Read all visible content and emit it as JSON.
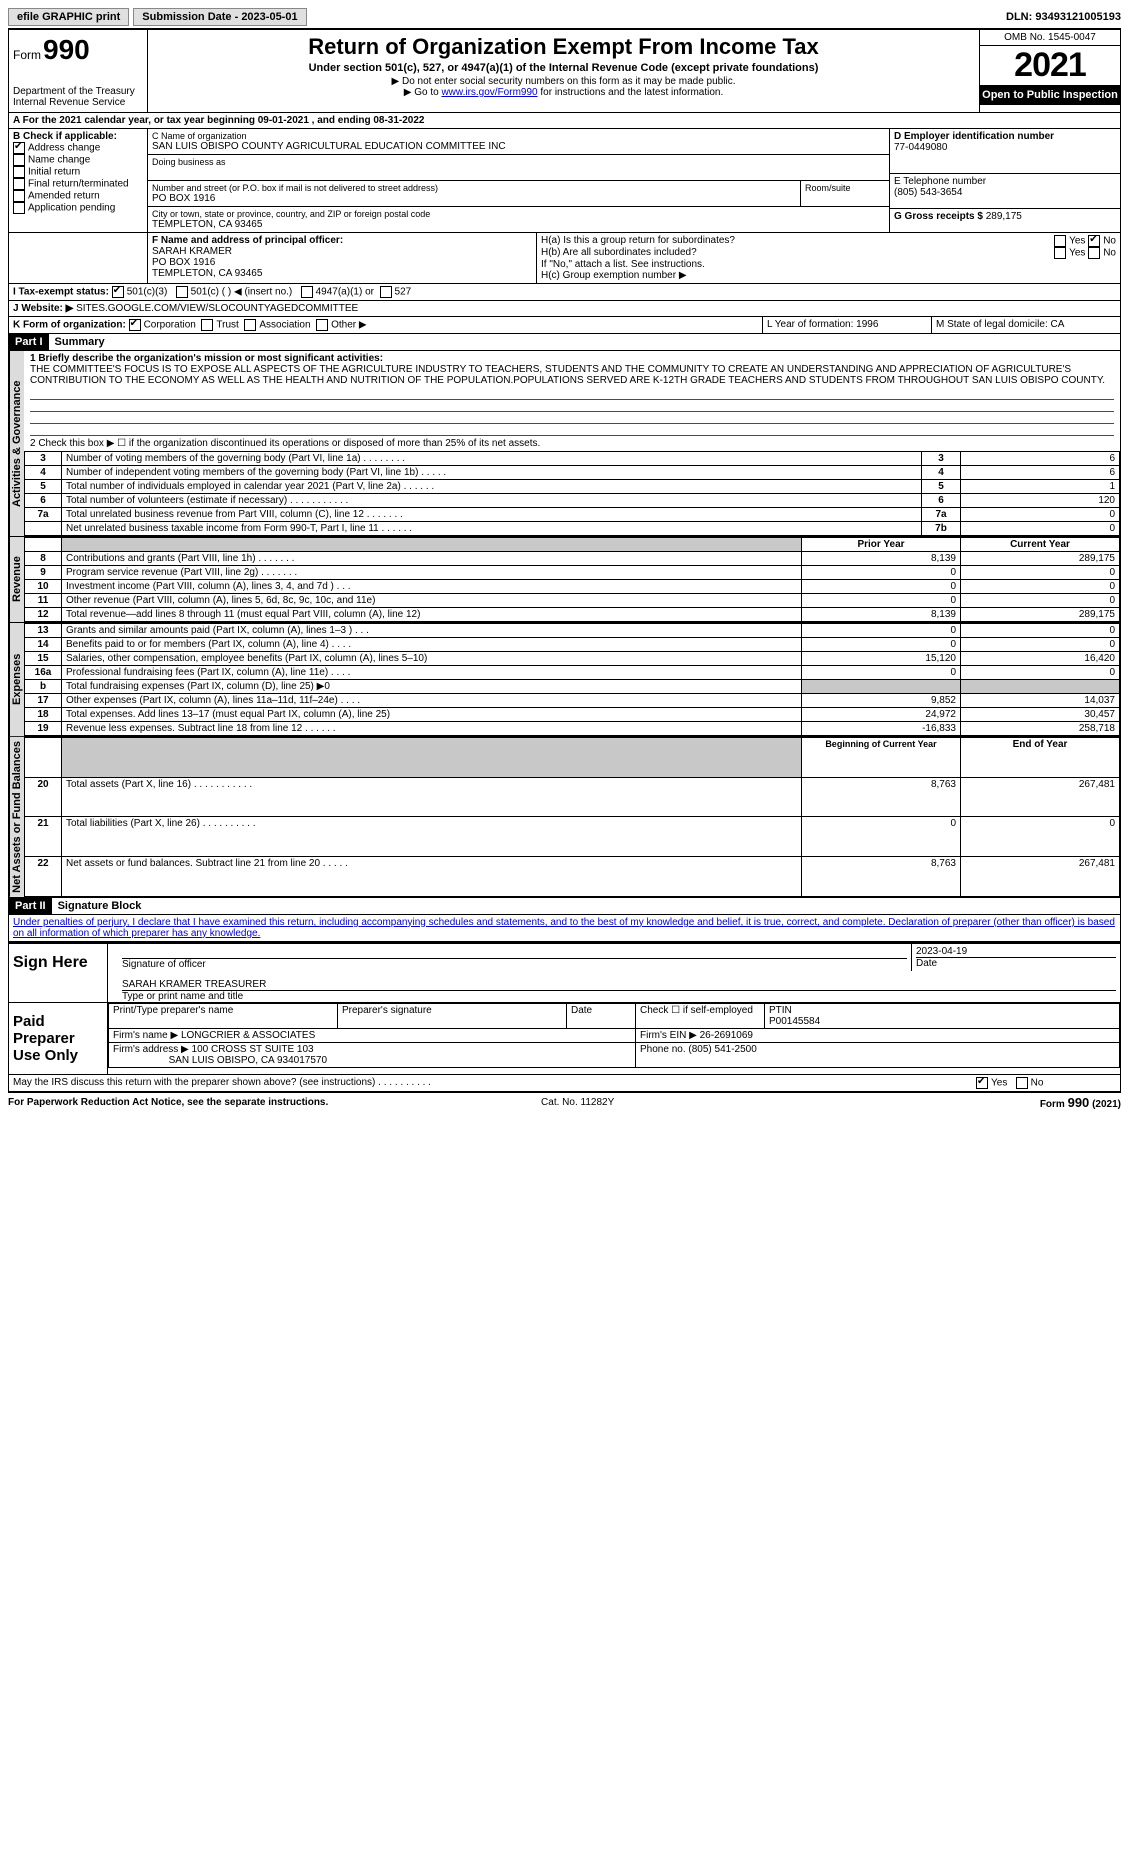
{
  "topbar": {
    "efile_label": "efile GRAPHIC print",
    "submission_label": "Submission Date - 2023-05-01",
    "dln_label": "DLN: 93493121005193"
  },
  "header": {
    "form_word": "Form",
    "form_num": "990",
    "dept": "Department of the Treasury",
    "irs": "Internal Revenue Service",
    "title": "Return of Organization Exempt From Income Tax",
    "sub": "Under section 501(c), 527, or 4947(a)(1) of the Internal Revenue Code (except private foundations)",
    "note1": "▶ Do not enter social security numbers on this form as it may be made public.",
    "note2_pre": "▶ Go to ",
    "note2_link": "www.irs.gov/Form990",
    "note2_post": " for instructions and the latest information.",
    "omb": "OMB No. 1545-0047",
    "year": "2021",
    "open": "Open to Public Inspection"
  },
  "line_a": "For the 2021 calendar year, or tax year beginning 09-01-2021   , and ending 08-31-2022",
  "box_b": {
    "title": "B Check if applicable:",
    "addr_change": "Address change",
    "name_change": "Name change",
    "initial": "Initial return",
    "final": "Final return/terminated",
    "amended": "Amended return",
    "app_pending": "Application pending"
  },
  "box_c": {
    "label": "C Name of organization",
    "name": "SAN LUIS OBISPO COUNTY AGRICULTURAL EDUCATION COMMITTEE INC",
    "dba_label": "Doing business as",
    "street_label": "Number and street (or P.O. box if mail is not delivered to street address)",
    "street": "PO BOX 1916",
    "room_label": "Room/suite",
    "city_label": "City or town, state or province, country, and ZIP or foreign postal code",
    "city": "TEMPLETON, CA  93465"
  },
  "box_d": {
    "label": "D Employer identification number",
    "val": "77-0449080"
  },
  "box_e": {
    "label": "E Telephone number",
    "val": "(805) 543-3654"
  },
  "box_g": {
    "label": "G Gross receipts $",
    "val": "289,175"
  },
  "box_f": {
    "label": "F  Name and address of principal officer:",
    "name": "SARAH KRAMER",
    "street": "PO BOX 1916",
    "city": "TEMPLETON, CA  93465"
  },
  "box_h": {
    "ha": "H(a)  Is this a group return for subordinates?",
    "hb": "H(b)  Are all subordinates included?",
    "hb_note": "If \"No,\" attach a list. See instructions.",
    "hc": "H(c)  Group exemption number ▶",
    "yes": "Yes",
    "no": "No"
  },
  "box_i": {
    "label": "I   Tax-exempt status:",
    "c3": "501(c)(3)",
    "c": "501(c) (    ) ◀ (insert no.)",
    "a1": "4947(a)(1) or",
    "s527": "527"
  },
  "box_j": {
    "label": "J   Website: ▶",
    "val": "SITES.GOOGLE.COM/VIEW/SLOCOUNTYAGEDCOMMITTEE"
  },
  "box_k": {
    "label": "K Form of organization:",
    "corp": "Corporation",
    "trust": "Trust",
    "assoc": "Association",
    "other": "Other ▶"
  },
  "box_l": {
    "label": "L Year of formation: 1996"
  },
  "box_m": {
    "label": "M State of legal domicile: CA"
  },
  "part1": {
    "hdr": "Part I",
    "title": "Summary"
  },
  "summary": {
    "line1_label": "1   Briefly describe the organization's mission or most significant activities:",
    "mission": "THE COMMITTEE'S FOCUS IS TO EXPOSE ALL ASPECTS OF THE AGRICULTURE INDUSTRY TO TEACHERS, STUDENTS AND THE COMMUNITY TO CREATE AN UNDERSTANDING AND APPRECIATION OF AGRICULTURE'S CONTRIBUTION TO THE ECONOMY AS WELL AS THE HEALTH AND NUTRITION OF THE POPULATION.POPULATIONS SERVED ARE K-12TH GRADE TEACHERS AND STUDENTS FROM THROUGHOUT SAN LUIS OBISPO COUNTY.",
    "line2": "2    Check this box ▶ ☐  if the organization discontinued its operations or disposed of more than 25% of its net assets.",
    "rows_gov": [
      {
        "n": "3",
        "d": "Number of voting members of the governing body (Part VI, line 1a)   .    .    .    .    .    .    .    .",
        "box": "3",
        "v": "6"
      },
      {
        "n": "4",
        "d": "Number of independent voting members of the governing body (Part VI, line 1b)   .    .    .    .    .",
        "box": "4",
        "v": "6"
      },
      {
        "n": "5",
        "d": "Total number of individuals employed in calendar year 2021 (Part V, line 2a)   .    .    .    .    .    .",
        "box": "5",
        "v": "1"
      },
      {
        "n": "6",
        "d": "Total number of volunteers (estimate if necessary)   .    .    .    .    .    .    .    .    .    .    .",
        "box": "6",
        "v": "120"
      },
      {
        "n": "7a",
        "d": "Total unrelated business revenue from Part VIII, column (C), line 12   .    .    .    .    .    .    .",
        "box": "7a",
        "v": "0"
      },
      {
        "n": "",
        "d": "Net unrelated business taxable income from Form 990-T, Part I, line 11   .    .    .    .    .    .",
        "box": "7b",
        "v": "0"
      }
    ],
    "col_prior": "Prior Year",
    "col_curr": "Current Year",
    "rows_rev": [
      {
        "n": "8",
        "d": "Contributions and grants (Part VIII, line 1h)   .    .    .    .    .    .    .",
        "p": "8,139",
        "c": "289,175"
      },
      {
        "n": "9",
        "d": "Program service revenue (Part VIII, line 2g)   .    .    .    .    .    .    .",
        "p": "0",
        "c": "0"
      },
      {
        "n": "10",
        "d": "Investment income (Part VIII, column (A), lines 3, 4, and 7d )   .    .    .",
        "p": "0",
        "c": "0"
      },
      {
        "n": "11",
        "d": "Other revenue (Part VIII, column (A), lines 5, 6d, 8c, 9c, 10c, and 11e)",
        "p": "0",
        "c": "0"
      },
      {
        "n": "12",
        "d": "Total revenue—add lines 8 through 11 (must equal Part VIII, column (A), line 12)",
        "p": "8,139",
        "c": "289,175"
      }
    ],
    "rows_exp": [
      {
        "n": "13",
        "d": "Grants and similar amounts paid (Part IX, column (A), lines 1–3 )   .    .    .",
        "p": "0",
        "c": "0"
      },
      {
        "n": "14",
        "d": "Benefits paid to or for members (Part IX, column (A), line 4)   .    .    .    .",
        "p": "0",
        "c": "0"
      },
      {
        "n": "15",
        "d": "Salaries, other compensation, employee benefits (Part IX, column (A), lines 5–10)",
        "p": "15,120",
        "c": "16,420"
      },
      {
        "n": "16a",
        "d": "Professional fundraising fees (Part IX, column (A), line 11e)   .    .    .    .",
        "p": "0",
        "c": "0"
      },
      {
        "n": "b",
        "d": "Total fundraising expenses (Part IX, column (D), line 25) ▶0",
        "p": "",
        "c": "",
        "shade": true
      },
      {
        "n": "17",
        "d": "Other expenses (Part IX, column (A), lines 11a–11d, 11f–24e)   .    .    .    .",
        "p": "9,852",
        "c": "14,037"
      },
      {
        "n": "18",
        "d": "Total expenses. Add lines 13–17 (must equal Part IX, column (A), line 25)",
        "p": "24,972",
        "c": "30,457"
      },
      {
        "n": "19",
        "d": "Revenue less expenses. Subtract line 18 from line 12   .    .    .    .    .    .",
        "p": "-16,833",
        "c": "258,718"
      }
    ],
    "col_begin": "Beginning of Current Year",
    "col_end": "End of Year",
    "rows_net": [
      {
        "n": "20",
        "d": "Total assets (Part X, line 16)   .    .    .    .    .    .    .    .    .    .    .",
        "p": "8,763",
        "c": "267,481"
      },
      {
        "n": "21",
        "d": "Total liabilities (Part X, line 26)   .    .    .    .    .    .    .    .    .    .",
        "p": "0",
        "c": "0"
      },
      {
        "n": "22",
        "d": "Net assets or fund balances. Subtract line 21 from line 20   .    .    .    .    .",
        "p": "8,763",
        "c": "267,481"
      }
    ],
    "tabs": {
      "gov": "Activities & Governance",
      "rev": "Revenue",
      "exp": "Expenses",
      "net": "Net Assets or Fund Balances"
    }
  },
  "part2": {
    "hdr": "Part II",
    "title": "Signature Block"
  },
  "sig": {
    "perjury": "Under penalties of perjury, I declare that I have examined this return, including accompanying schedules and statements, and to the best of my knowledge and belief, it is true, correct, and complete. Declaration of preparer (other than officer) is based on all information of which preparer has any knowledge.",
    "sign_here": "Sign Here",
    "sig_officer": "Signature of officer",
    "date_label": "Date",
    "date": "2023-04-19",
    "name_title_label": "Type or print name and title",
    "name_title": "SARAH KRAMER  TREASURER",
    "paid": "Paid Preparer Use Only",
    "prep_name_label": "Print/Type preparer's name",
    "prep_sig_label": "Preparer's signature",
    "prep_date_label": "Date",
    "self_emp": "Check ☐ if self-employed",
    "ptin_label": "PTIN",
    "ptin": "P00145584",
    "firm_name_label": "Firm's name    ▶",
    "firm_name": "LONGCRIER & ASSOCIATES",
    "firm_ein_label": "Firm's EIN ▶",
    "firm_ein": "26-2691069",
    "firm_addr_label": "Firm's address ▶",
    "firm_addr1": "100 CROSS ST SUITE 103",
    "firm_addr2": "SAN LUIS OBISPO, CA  934017570",
    "phone_label": "Phone no.",
    "phone": "(805) 541-2500",
    "discuss": "May the IRS discuss this return with the preparer shown above? (see instructions)   .    .    .    .    .    .    .    .    .    .",
    "yes": "Yes",
    "no": "No"
  },
  "footer": {
    "pra": "For Paperwork Reduction Act Notice, see the separate instructions.",
    "cat": "Cat. No. 11282Y",
    "form": "Form 990 (2021)"
  }
}
